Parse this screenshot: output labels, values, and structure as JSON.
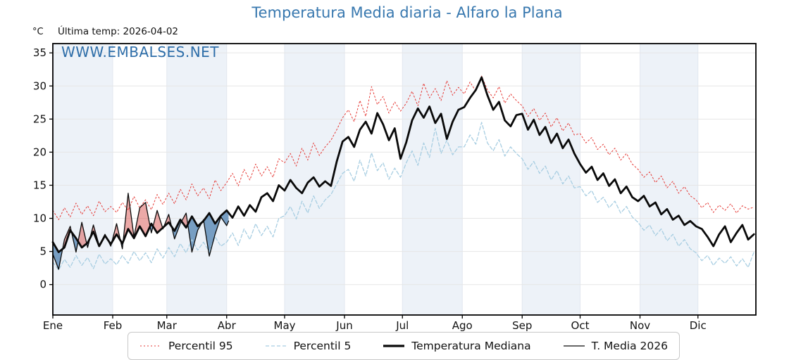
{
  "title": "Temperatura Media diaria - Alfaro la Plana",
  "header": {
    "units": "°C",
    "last_temp": "Última temp: 2026-04-02"
  },
  "watermark": "WWW.EMBALSES.NET",
  "colors": {
    "title": "#3878af",
    "watermark": "#2e6ea9",
    "month_stripe": "#edf2f8",
    "h_gridline": "#e6e6e6",
    "v_gridline": "#e2e7ef",
    "spine": "#000000",
    "tick_label": "#111111"
  },
  "legend": {
    "items": [
      {
        "label": "Percentil 95",
        "series_index": 0
      },
      {
        "label": "Percentil 5",
        "series_index": 1
      },
      {
        "label": "Temperatura Mediana",
        "series_index": 2
      },
      {
        "label": "T. Media 2026",
        "series_index": 3
      }
    ]
  },
  "chart_data": {
    "type": "line",
    "title": "Temperatura Media diaria - Alfaro la Plana",
    "ylabel": "°C",
    "ylim": [
      -4.6,
      36.4
    ],
    "yticks": [
      0,
      5,
      10,
      15,
      20,
      25,
      30,
      35
    ],
    "x_range_days": [
      1,
      365
    ],
    "month_labels": [
      "Ene",
      "Feb",
      "Mar",
      "Abr",
      "May",
      "Jun",
      "Jul",
      "Ago",
      "Sep",
      "Oct",
      "Nov",
      "Dic"
    ],
    "month_start_days": [
      1,
      32,
      60,
      91,
      121,
      152,
      182,
      213,
      244,
      274,
      305,
      335
    ],
    "shaded_month_indices": [
      0,
      2,
      4,
      6,
      8,
      10
    ],
    "sampling": {
      "start_day": 1,
      "step_days": 3,
      "note": "daily curves read from plot at 3-day resolution"
    },
    "series": [
      {
        "name": "Percentil 95",
        "style": "dotted",
        "color": "#e53935",
        "width": 1,
        "values": [
          11.2,
          9.8,
          11.6,
          10.2,
          12.3,
          10.6,
          11.9,
          10.4,
          12.6,
          11.0,
          11.8,
          10.9,
          12.4,
          11.2,
          13.3,
          11.6,
          12.8,
          11.3,
          13.6,
          12.1,
          13.8,
          12.2,
          14.4,
          12.8,
          15.2,
          13.4,
          14.6,
          13.0,
          15.8,
          14.2,
          15.4,
          16.8,
          14.9,
          17.4,
          15.8,
          18.2,
          16.4,
          17.8,
          16.2,
          19.0,
          18.4,
          19.8,
          17.9,
          20.6,
          18.8,
          21.4,
          19.5,
          20.8,
          21.8,
          23.4,
          25.2,
          26.4,
          24.6,
          27.8,
          25.4,
          29.9,
          27.2,
          28.4,
          25.9,
          27.6,
          26.2,
          27.4,
          29.2,
          27.0,
          30.4,
          28.2,
          29.6,
          27.8,
          30.8,
          28.6,
          29.8,
          28.8,
          30.6,
          29.2,
          31.5,
          29.4,
          28.2,
          29.9,
          27.4,
          28.8,
          27.8,
          27.0,
          25.4,
          26.6,
          24.8,
          25.9,
          23.8,
          25.2,
          23.2,
          24.4,
          22.6,
          22.8,
          21.4,
          22.2,
          20.4,
          21.2,
          19.6,
          20.6,
          18.8,
          19.8,
          18.2,
          17.4,
          16.2,
          17.0,
          15.4,
          16.4,
          14.6,
          15.6,
          13.8,
          14.8,
          13.4,
          12.8,
          11.6,
          12.4,
          10.9,
          12.0,
          11.2,
          12.2,
          10.8,
          11.9,
          11.4,
          11.7
        ]
      },
      {
        "name": "Percentil 5",
        "style": "dashed",
        "color": "#a8cee2",
        "width": 1.3,
        "values": [
          3.4,
          2.2,
          3.8,
          2.6,
          4.4,
          2.9,
          4.1,
          2.4,
          4.6,
          3.1,
          3.9,
          3.0,
          4.4,
          3.2,
          5.0,
          3.6,
          4.8,
          3.3,
          5.4,
          4.0,
          5.6,
          4.2,
          6.2,
          4.8,
          6.8,
          5.2,
          6.4,
          5.0,
          7.2,
          5.8,
          6.4,
          7.8,
          5.9,
          8.4,
          6.8,
          9.2,
          7.4,
          8.8,
          7.2,
          10.0,
          10.4,
          11.8,
          9.9,
          12.6,
          10.8,
          13.4,
          11.5,
          12.8,
          13.6,
          15.2,
          16.8,
          17.4,
          15.6,
          18.8,
          16.4,
          19.9,
          17.2,
          18.4,
          15.9,
          17.6,
          16.2,
          18.4,
          20.2,
          18.0,
          21.4,
          19.2,
          23.6,
          19.8,
          21.8,
          19.6,
          20.8,
          20.8,
          22.6,
          21.2,
          24.5,
          21.4,
          20.2,
          21.9,
          19.4,
          20.8,
          19.8,
          19.0,
          17.4,
          18.6,
          16.8,
          17.9,
          15.8,
          17.2,
          15.2,
          16.4,
          14.6,
          14.8,
          13.4,
          14.2,
          12.4,
          13.2,
          11.6,
          12.6,
          10.8,
          11.8,
          10.2,
          9.4,
          8.2,
          9.0,
          7.4,
          8.4,
          6.6,
          7.6,
          5.8,
          6.8,
          5.4,
          4.8,
          3.6,
          4.4,
          2.9,
          4.0,
          3.2,
          4.2,
          2.8,
          3.9,
          2.6,
          4.9
        ]
      },
      {
        "name": "Temperatura Mediana",
        "style": "solid",
        "color": "#0a0a0a",
        "width": 2.8,
        "values": [
          6.4,
          4.9,
          5.6,
          8.2,
          7.0,
          5.6,
          6.3,
          8.0,
          5.8,
          7.4,
          6.1,
          7.6,
          6.2,
          8.4,
          7.0,
          8.8,
          7.3,
          9.2,
          7.8,
          8.6,
          9.4,
          8.1,
          9.8,
          8.6,
          10.3,
          8.8,
          9.6,
          10.8,
          9.2,
          10.4,
          11.2,
          10.1,
          11.8,
          10.4,
          12.0,
          11.0,
          13.2,
          13.8,
          12.6,
          15.0,
          14.2,
          15.8,
          14.6,
          13.8,
          15.4,
          16.2,
          14.8,
          15.6,
          14.9,
          18.6,
          21.6,
          22.3,
          20.8,
          23.4,
          24.6,
          22.8,
          25.9,
          24.2,
          21.8,
          23.6,
          19.0,
          21.5,
          24.8,
          26.6,
          25.2,
          26.9,
          24.4,
          25.8,
          22.0,
          24.6,
          26.4,
          26.8,
          28.2,
          29.4,
          31.3,
          28.6,
          26.4,
          27.6,
          24.8,
          23.9,
          25.6,
          25.8,
          23.4,
          24.9,
          22.6,
          23.8,
          21.4,
          22.8,
          20.6,
          21.9,
          19.8,
          18.2,
          16.9,
          17.8,
          15.8,
          16.8,
          14.9,
          15.9,
          13.8,
          14.8,
          13.2,
          12.6,
          13.4,
          11.8,
          12.4,
          10.6,
          11.4,
          9.8,
          10.4,
          9.0,
          9.6,
          8.8,
          8.4,
          7.2,
          5.8,
          7.6,
          8.8,
          6.4,
          7.8,
          9.0,
          6.8,
          7.6
        ]
      },
      {
        "name": "T. Media 2026",
        "style": "solid",
        "color": "#0a0a0a",
        "width": 1.3,
        "days": [
          1,
          4,
          7,
          10,
          13,
          16,
          19,
          22,
          25,
          28,
          31,
          34,
          37,
          40,
          43,
          46,
          49,
          52,
          55,
          58,
          61,
          64,
          67,
          70,
          73,
          76,
          79,
          82,
          85,
          88,
          91,
          92
        ],
        "values": [
          4.6,
          2.3,
          6.8,
          8.8,
          4.9,
          9.4,
          5.6,
          9.0,
          5.9,
          7.6,
          5.8,
          9.2,
          5.4,
          13.8,
          7.2,
          11.6,
          12.4,
          7.8,
          11.2,
          8.4,
          10.6,
          6.9,
          9.2,
          10.8,
          4.9,
          8.2,
          9.8,
          4.3,
          7.6,
          10.2,
          8.9,
          9.6
        ]
      }
    ],
    "deviation_fill": {
      "above_color": "#d9534f",
      "above_opacity": 0.5,
      "below_color": "#4a7dae",
      "below_opacity": 0.72,
      "meaning": "red where T. Media 2026 is above Temperatura Mediana, blue where below"
    },
    "legend_position": "bottom-center",
    "grid": true
  }
}
